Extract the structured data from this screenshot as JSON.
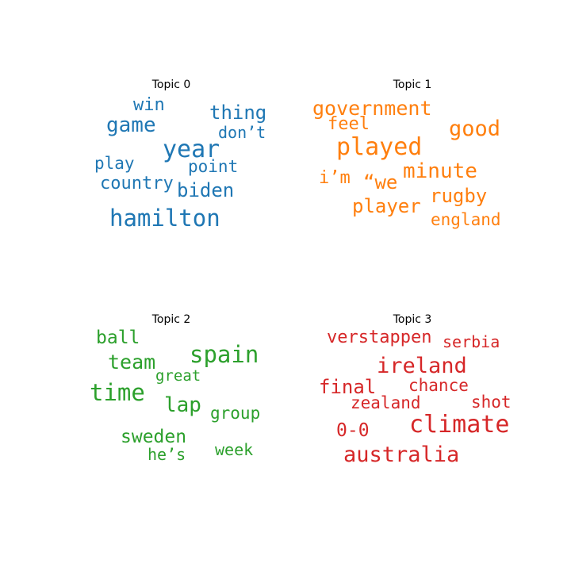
{
  "chart_data": {
    "type": "wordcloud",
    "panels": [
      {
        "title": "Topic 0",
        "color": "#1f77b4",
        "words": [
          {
            "text": "win",
            "weight": 0.6
          },
          {
            "text": "thing",
            "weight": 0.68
          },
          {
            "text": "game",
            "weight": 0.76
          },
          {
            "text": "don’t",
            "weight": 0.55
          },
          {
            "text": "year",
            "weight": 0.92
          },
          {
            "text": "play",
            "weight": 0.58
          },
          {
            "text": "point",
            "weight": 0.58
          },
          {
            "text": "country",
            "weight": 0.62
          },
          {
            "text": "biden",
            "weight": 0.72
          },
          {
            "text": "hamilton",
            "weight": 0.92
          }
        ]
      },
      {
        "title": "Topic 1",
        "color": "#ff7f0e",
        "words": [
          {
            "text": "government",
            "weight": 0.74
          },
          {
            "text": "feel",
            "weight": 0.62
          },
          {
            "text": "good",
            "weight": 0.82
          },
          {
            "text": "played",
            "weight": 0.93
          },
          {
            "text": "i’m",
            "weight": 0.66
          },
          {
            "text": "“we",
            "weight": 0.72
          },
          {
            "text": "minute",
            "weight": 0.79
          },
          {
            "text": "rugby",
            "weight": 0.71
          },
          {
            "text": "player",
            "weight": 0.73
          },
          {
            "text": "england",
            "weight": 0.64
          }
        ]
      },
      {
        "title": "Topic 2",
        "color": "#2ca02c",
        "words": [
          {
            "text": "ball",
            "weight": 0.66
          },
          {
            "text": "spain",
            "weight": 0.9
          },
          {
            "text": "team",
            "weight": 0.74
          },
          {
            "text": "great",
            "weight": 0.55
          },
          {
            "text": "time",
            "weight": 0.9
          },
          {
            "text": "lap",
            "weight": 0.78
          },
          {
            "text": "group",
            "weight": 0.62
          },
          {
            "text": "sweden",
            "weight": 0.68
          },
          {
            "text": "he’s",
            "weight": 0.58
          },
          {
            "text": "week",
            "weight": 0.58
          }
        ]
      },
      {
        "title": "Topic 3",
        "color": "#d62728",
        "words": [
          {
            "text": "verstappen",
            "weight": 0.68
          },
          {
            "text": "serbia",
            "weight": 0.6
          },
          {
            "text": "ireland",
            "weight": 0.82
          },
          {
            "text": "final",
            "weight": 0.71
          },
          {
            "text": "chance",
            "weight": 0.62
          },
          {
            "text": "zealand",
            "weight": 0.62
          },
          {
            "text": "shot",
            "weight": 0.64
          },
          {
            "text": "0-0",
            "weight": 0.68
          },
          {
            "text": "climate",
            "weight": 0.9
          },
          {
            "text": "australia",
            "weight": 0.8
          }
        ]
      }
    ]
  }
}
